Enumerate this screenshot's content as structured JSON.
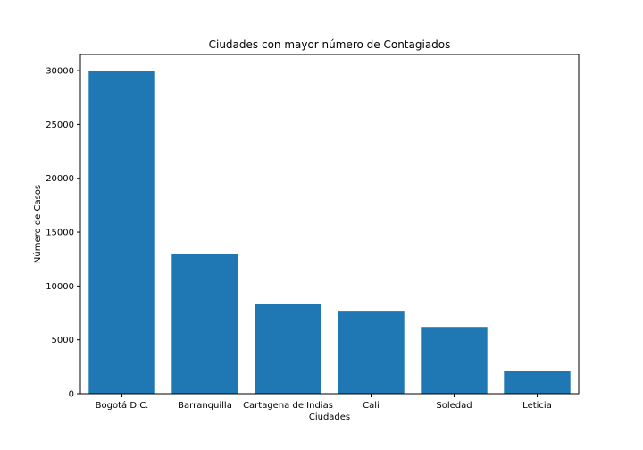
{
  "chart_data": {
    "type": "bar",
    "title": "Ciudades con mayor número de Contagiados",
    "xlabel": "Ciudades",
    "ylabel": "Número de Casos",
    "categories": [
      "Bogotá D.C.",
      "Barranquilla",
      "Cartagena de Indias",
      "Cali",
      "Soledad",
      "Leticia"
    ],
    "values": [
      30000,
      13000,
      8350,
      7700,
      6200,
      2150
    ],
    "ylim": [
      0,
      31500
    ],
    "yticks": [
      0,
      5000,
      10000,
      15000,
      20000,
      25000,
      30000
    ],
    "bar_color": "#1f77b4",
    "grid": false,
    "legend": "none"
  }
}
